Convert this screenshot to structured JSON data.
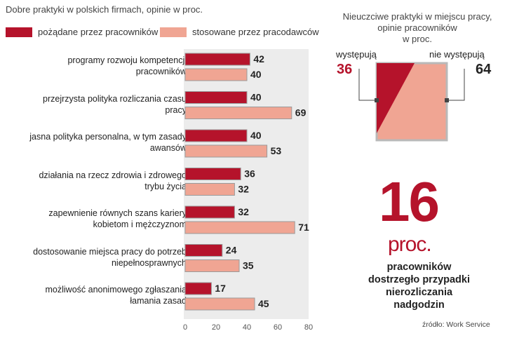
{
  "left_chart": {
    "title": "Dobre praktyki w polskich firmach, opinie w proc.",
    "legend": [
      {
        "label": "pożądane przez pracowników",
        "color": "#b5132b"
      },
      {
        "label": "stosowane przez pracodawców",
        "color": "#f0a593"
      }
    ]
  },
  "chart_data": [
    {
      "type": "bar",
      "orientation": "horizontal",
      "title": "Dobre praktyki w polskich firmach, opinie w proc.",
      "categories": [
        [
          "programy rozwoju kompetencji",
          "pracowników"
        ],
        [
          "przejrzysta polityka rozliczania czasu",
          "pracy"
        ],
        [
          "jasna polityka personalna, w tym zasady",
          "awansów"
        ],
        [
          "działania na rzecz zdrowia i zdrowego",
          "trybu życia"
        ],
        [
          "zapewnienie równych szans kariery",
          "kobietom i mężczyznom"
        ],
        [
          "dostosowanie miejsca pracy do potrzeb",
          "niepełnosprawnych"
        ],
        [
          "możliwość anonimowego zgłaszania",
          "łamania zasad"
        ]
      ],
      "series": [
        {
          "name": "pożądane przez pracowników",
          "color": "#b5132b",
          "values": [
            42,
            40,
            40,
            36,
            32,
            24,
            17
          ]
        },
        {
          "name": "stosowane przez pracodawców",
          "color": "#f0a593",
          "values": [
            40,
            69,
            53,
            32,
            71,
            35,
            45
          ]
        }
      ],
      "xlim": [
        0,
        80
      ],
      "xticks": [
        0,
        20,
        40,
        60,
        80
      ]
    },
    {
      "type": "pie",
      "title": [
        "Nieuczciwe praktyki w miejscu pracy,",
        "opinie pracowników",
        "w proc."
      ],
      "labels": [
        "występują",
        "nie występują"
      ],
      "values": [
        36,
        64
      ],
      "colors": [
        "#b5132b",
        "#f0a593"
      ]
    }
  ],
  "highlight": {
    "number": "16",
    "unit": "proc.",
    "description": [
      "pracowników",
      "dostrzegło przypadki",
      "nierozliczania",
      "nadgodzin"
    ]
  },
  "source": "źródło: Work Service"
}
